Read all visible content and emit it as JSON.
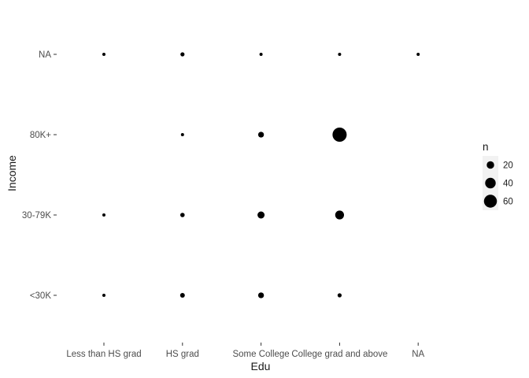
{
  "chart_data": {
    "type": "scatter",
    "title": "",
    "xlabel": "Edu",
    "ylabel": "Income",
    "x_categories": [
      "Less than HS grad",
      "HS grad",
      "Some College",
      "College grad and above",
      "NA"
    ],
    "y_categories": [
      "<30K",
      "30-79K",
      "80K+",
      "NA"
    ],
    "size_variable": "n",
    "points": [
      {
        "x": "Less than HS grad",
        "y": "NA",
        "n": 2
      },
      {
        "x": "HS grad",
        "y": "NA",
        "n": 6
      },
      {
        "x": "Some College",
        "y": "NA",
        "n": 2
      },
      {
        "x": "College grad and above",
        "y": "NA",
        "n": 2
      },
      {
        "x": "NA",
        "y": "NA",
        "n": 2
      },
      {
        "x": "HS grad",
        "y": "80K+",
        "n": 2
      },
      {
        "x": "Some College",
        "y": "80K+",
        "n": 12
      },
      {
        "x": "College grad and above",
        "y": "80K+",
        "n": 72
      },
      {
        "x": "Less than HS grad",
        "y": "30-79K",
        "n": 1
      },
      {
        "x": "HS grad",
        "y": "30-79K",
        "n": 7
      },
      {
        "x": "Some College",
        "y": "30-79K",
        "n": 18
      },
      {
        "x": "College grad and above",
        "y": "30-79K",
        "n": 28
      },
      {
        "x": "Less than HS grad",
        "y": "<30K",
        "n": 3
      },
      {
        "x": "HS grad",
        "y": "<30K",
        "n": 8
      },
      {
        "x": "Some College",
        "y": "<30K",
        "n": 12
      },
      {
        "x": "College grad and above",
        "y": "<30K",
        "n": 6
      }
    ],
    "legend": {
      "title": "n",
      "placement": "right",
      "entries": [
        {
          "label": "20",
          "n": 20
        },
        {
          "label": "40",
          "n": 40
        },
        {
          "label": "60",
          "n": 60
        }
      ]
    },
    "grid": false,
    "colors": {
      "point": "#000000",
      "legend_key_bg": "#f2f2f2"
    }
  }
}
